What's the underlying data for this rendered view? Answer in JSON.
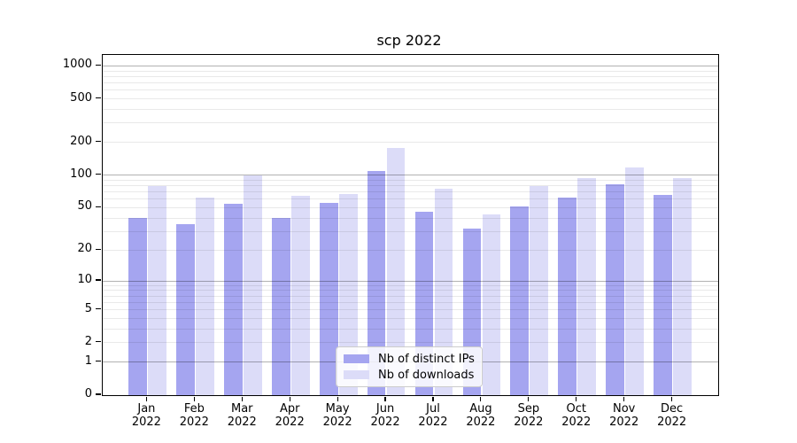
{
  "title": "scp 2022",
  "chart_data": {
    "type": "bar",
    "title": "scp 2022",
    "categories": [
      "Jan",
      "Feb",
      "Mar",
      "Apr",
      "May",
      "Jun",
      "Jul",
      "Aug",
      "Sep",
      "Oct",
      "Nov",
      "Dec"
    ],
    "category_year": "2022",
    "series": [
      {
        "name": "Nb of distinct IPs",
        "color": "#a5a5f0",
        "values": [
          40,
          35,
          54,
          40,
          56,
          110,
          46,
          32,
          51,
          62,
          82,
          66
        ]
      },
      {
        "name": "Nb of downloads",
        "color": "#dcdcf8",
        "values": [
          80,
          62,
          100,
          65,
          67,
          178,
          75,
          43,
          79,
          95,
          118,
          95
        ]
      }
    ],
    "xlabel": "",
    "ylabel": "",
    "y_scale": "log10(value+1)",
    "ylim": [
      0,
      1258
    ],
    "y_ticks": [
      0,
      1,
      2,
      5,
      10,
      20,
      50,
      100,
      200,
      500,
      1000
    ],
    "grid_major_values": [
      1,
      10,
      100,
      1000
    ],
    "grid_minor_values": [
      2,
      3,
      4,
      5,
      6,
      7,
      8,
      9,
      20,
      30,
      40,
      50,
      60,
      70,
      80,
      90,
      200,
      300,
      400,
      500,
      600,
      700,
      800,
      900
    ],
    "grid": true,
    "legend_position": "lower center"
  },
  "colors": {
    "bar_distinct_ips": "#a5a5f0",
    "bar_downloads": "#dcdcf8",
    "grid_major": "#b3b3b3",
    "grid_minor": "#e9e9e9",
    "spine": "#000000",
    "legend_border": "#cccccc"
  }
}
